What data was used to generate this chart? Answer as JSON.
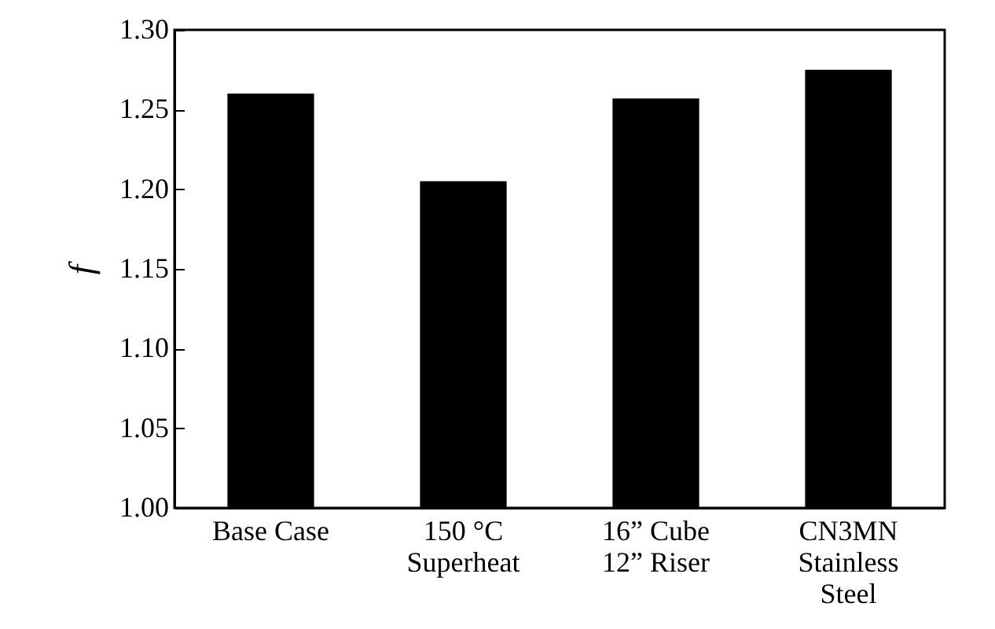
{
  "chart_data": {
    "type": "bar",
    "ylabel": "f",
    "categories": [
      "Base Case",
      "150 °C\nSuperheat",
      "16” Cube\n12” Riser",
      "CN3MN\nStainless\nSteel"
    ],
    "values": [
      1.26,
      1.205,
      1.257,
      1.275
    ],
    "color": "#000000",
    "ylim": [
      1.0,
      1.3
    ],
    "yticks": [
      {
        "value": 1.0,
        "label": "1.00"
      },
      {
        "value": 1.05,
        "label": "1.05"
      },
      {
        "value": 1.1,
        "label": "1.10"
      },
      {
        "value": 1.15,
        "label": "1.15"
      },
      {
        "value": 1.2,
        "label": "1.20"
      },
      {
        "value": 1.25,
        "label": "1.25"
      },
      {
        "value": 1.3,
        "label": "1.30"
      }
    ],
    "grid": false
  }
}
